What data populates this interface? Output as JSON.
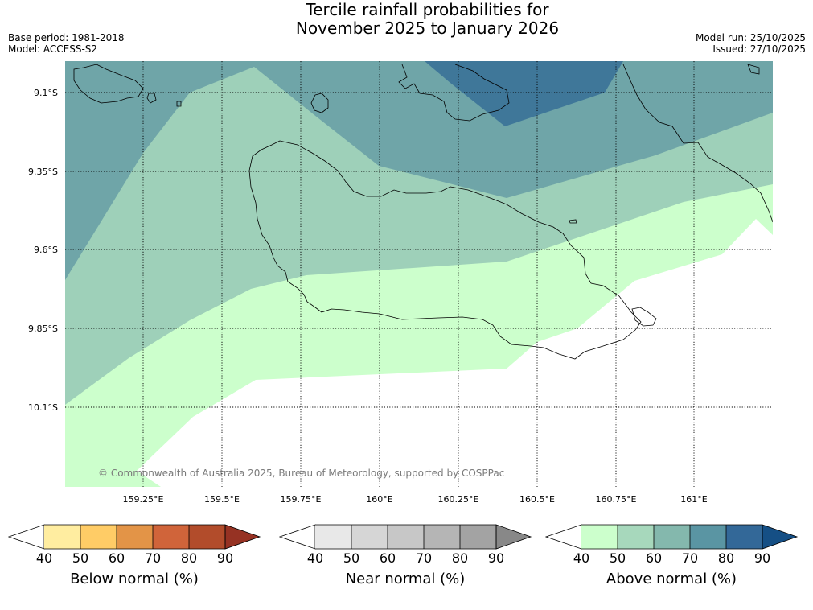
{
  "header": {
    "title_line1": "Tercile rainfall probabilities for",
    "title_line2": "November 2025 to January 2026",
    "base_period": "Base period: 1981-2018",
    "model": "Model: ACCESS-S2",
    "model_run": "Model run: 25/10/2025",
    "issued": "Issued: 27/10/2025"
  },
  "map": {
    "lat_labels": [
      "9.1°S",
      "9.35°S",
      "9.6°S",
      "9.85°S",
      "10.1°S"
    ],
    "lon_labels": [
      "159.25°E",
      "159.5°E",
      "159.75°E",
      "160°E",
      "160.25°E",
      "160.5°E",
      "160.75°E",
      "161°E"
    ],
    "copyright": "© Commonwealth of Australia 2025, Bureau of Meteorology, supported by COSPPac",
    "zone_colors": {
      "above_40_50": "#ccffcc",
      "above_50_60": "#9ed0b9",
      "above_60_70": "#6fa5a8",
      "above_70_80": "#3f7799"
    }
  },
  "colorbars": [
    {
      "label": "Below normal (%)",
      "ticks": [
        "40",
        "50",
        "60",
        "70",
        "80",
        "90"
      ],
      "colors": [
        "#ffeda0",
        "#ffcc66",
        "#e39447",
        "#d0643a",
        "#b24c2b",
        "#963223"
      ]
    },
    {
      "label": "Near normal (%)",
      "ticks": [
        "40",
        "50",
        "60",
        "70",
        "80",
        "90"
      ],
      "colors": [
        "#e8e8e8",
        "#d6d6d6",
        "#c7c7c7",
        "#b5b5b5",
        "#a3a3a3",
        "#888888"
      ]
    },
    {
      "label": "Above normal (%)",
      "ticks": [
        "40",
        "50",
        "60",
        "70",
        "80",
        "90"
      ],
      "colors": [
        "#ccffcc",
        "#a7d8bc",
        "#84b8ad",
        "#5a95a3",
        "#336898",
        "#154f85"
      ]
    }
  ]
}
